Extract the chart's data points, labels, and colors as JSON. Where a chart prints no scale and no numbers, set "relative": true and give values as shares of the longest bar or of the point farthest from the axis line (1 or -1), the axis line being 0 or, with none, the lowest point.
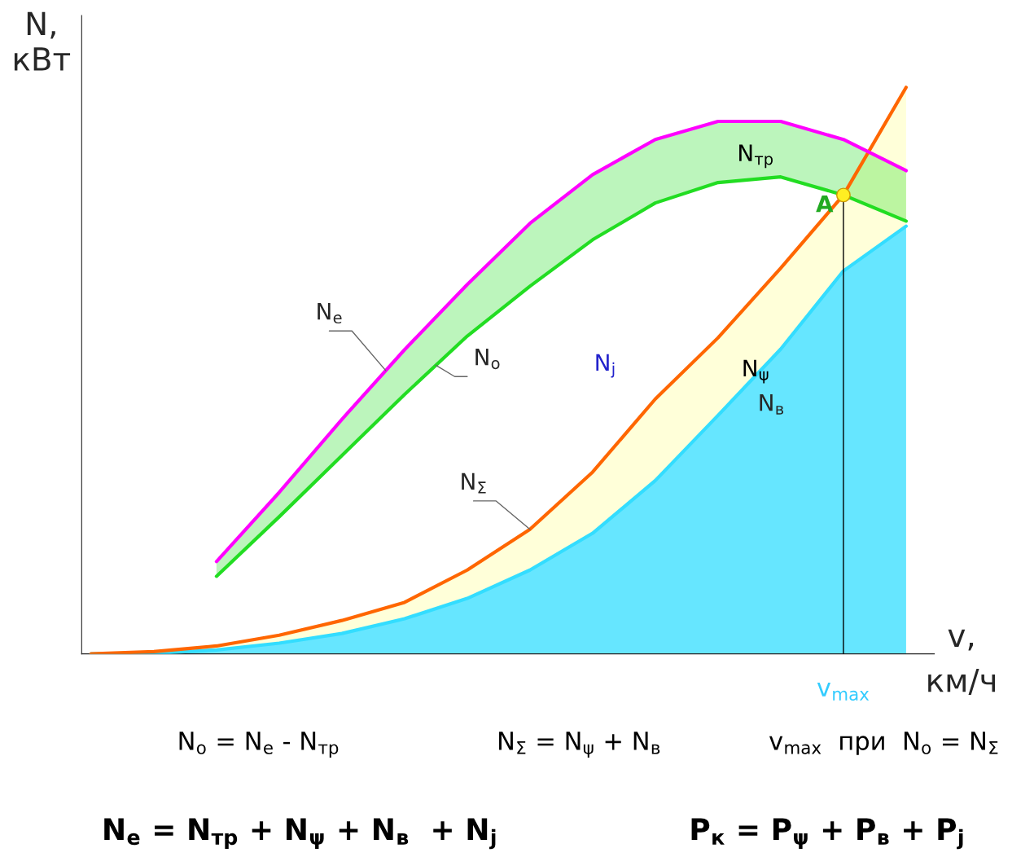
{
  "chart_data": {
    "type": "line",
    "relative": true,
    "xlabel": "v,\nкм/ч",
    "ylabel": "N,\nкВт",
    "categories": [
      null,
      null,
      null,
      null,
      null,
      null,
      null,
      null,
      null,
      null,
      null,
      null,
      null,
      null
    ],
    "series": [
      {
        "name": "N$_{в}$",
        "color": "#33ddff",
        "values": [
          0,
          0.001,
          0.007,
          0.019,
          0.036,
          0.062,
          0.098,
          0.148,
          0.213,
          0.306,
          0.421,
          0.538,
          0.676,
          0.755
        ],
        "lower": [
          0,
          0,
          0,
          0,
          0,
          0,
          0,
          0,
          0,
          0,
          0,
          0,
          0,
          0
        ],
        "upper": [
          0,
          0.001,
          0.007,
          0.019,
          0.036,
          0.062,
          0.098,
          0.148,
          0.213,
          0.306,
          0.421,
          0.538,
          0.676,
          0.755
        ]
      },
      {
        "name": "N$_{Σ}$",
        "color": "#ff6600",
        "values": [
          0,
          0.004,
          0.014,
          0.033,
          0.059,
          0.091,
          0.148,
          0.22,
          0.321,
          0.45,
          0.558,
          0.681,
          0.81,
          1
        ],
        "lower": [
          0,
          0.001,
          0.007,
          0.019,
          0.036,
          0.062,
          0.098,
          0.148,
          0.213,
          0.306,
          0.421,
          0.538,
          0.676,
          0.755
        ],
        "upper": [
          0,
          0.004,
          0.014,
          0.033,
          0.059,
          0.091,
          0.148,
          0.22,
          0.321,
          0.45,
          0.558,
          0.681,
          0.81,
          1
        ]
      },
      {
        "name": "N$_{o}$",
        "color": "#22dd22",
        "values": [
          null,
          null,
          0.137,
          0.242,
          0.35,
          0.458,
          0.561,
          0.649,
          0.731,
          0.796,
          0.832,
          0.842,
          0.81,
          0.764
        ],
        "lower": [
          null,
          null,
          0.137,
          0.242,
          0.35,
          0.458,
          0.561,
          0.649,
          0.731,
          0.796,
          0.832,
          0.842,
          0.81,
          0.764
        ],
        "upper": [
          null,
          null,
          0.163,
          0.285,
          0.414,
          0.537,
          0.652,
          0.76,
          0.846,
          0.908,
          0.94,
          0.94,
          0.908,
          0.853
        ]
      },
      {
        "name": "N$_{e}$",
        "color": "#ff00ff",
        "values": [
          null,
          null,
          0.163,
          0.285,
          0.414,
          0.537,
          0.652,
          0.76,
          0.846,
          0.908,
          0.94,
          0.94,
          0.908,
          0.853
        ]
      }
    ],
    "annotations": [
      "N$_{тр}$",
      "N$_{j}$",
      "N$_{ψ}$",
      "A",
      "N$_{o}$ = N$_{e}$ - N$_{тр}$",
      "N$_{Σ}$ = N$_{ψ}$ + N$_{в}$",
      "v$_{max}$  при  N$_{o}$ = N$_{Σ}$",
      "N$_{e}$ = N$_{тр}$ + N$_{ψ}$ + N$_{в}$  + N$_{j}$",
      "P$_{к}$ = P$_{ψ}$ + P$_{в}$ + P$_{j}$",
      "v$_{max}$"
    ]
  }
}
